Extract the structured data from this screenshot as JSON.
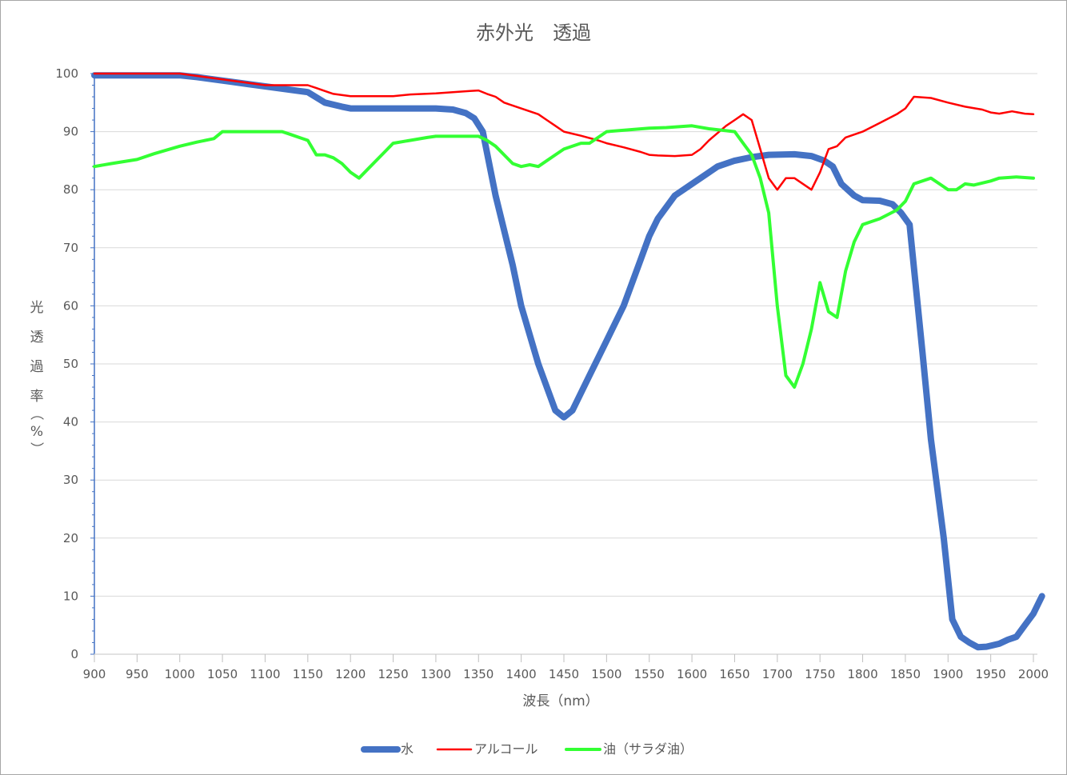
{
  "chart_data": {
    "type": "line",
    "title": "赤外光　透過",
    "xlabel": "波長（nm）",
    "ylabel": "光透過率（%）",
    "xlim": [
      900,
      2000
    ],
    "ylim": [
      0,
      100
    ],
    "xticks": [
      900,
      950,
      1000,
      1050,
      1100,
      1150,
      1200,
      1250,
      1300,
      1350,
      1400,
      1450,
      1500,
      1550,
      1600,
      1650,
      1700,
      1750,
      1800,
      1850,
      1900,
      1950,
      2000
    ],
    "yticks": [
      0,
      10,
      20,
      30,
      40,
      50,
      60,
      70,
      80,
      90,
      100
    ],
    "grid": "horizontal",
    "legend_position": "bottom",
    "series": [
      {
        "name": "水",
        "color": "#4472c4",
        "points": [
          [
            900,
            99.7
          ],
          [
            950,
            99.7
          ],
          [
            1000,
            99.7
          ],
          [
            1020,
            99.4
          ],
          [
            1040,
            99.0
          ],
          [
            1060,
            98.6
          ],
          [
            1080,
            98.2
          ],
          [
            1100,
            97.8
          ],
          [
            1120,
            97.4
          ],
          [
            1140,
            97.0
          ],
          [
            1150,
            96.8
          ],
          [
            1170,
            95.0
          ],
          [
            1190,
            94.3
          ],
          [
            1200,
            94.0
          ],
          [
            1250,
            94.0
          ],
          [
            1300,
            94.0
          ],
          [
            1320,
            93.8
          ],
          [
            1335,
            93.2
          ],
          [
            1345,
            92.3
          ],
          [
            1355,
            90.0
          ],
          [
            1370,
            79.0
          ],
          [
            1390,
            67.0
          ],
          [
            1400,
            60.0
          ],
          [
            1420,
            50.0
          ],
          [
            1440,
            42.0
          ],
          [
            1450,
            40.8
          ],
          [
            1460,
            42.0
          ],
          [
            1480,
            48.0
          ],
          [
            1500,
            54.0
          ],
          [
            1510,
            57.0
          ],
          [
            1520,
            60.0
          ],
          [
            1540,
            68.0
          ],
          [
            1550,
            72.0
          ],
          [
            1560,
            75.0
          ],
          [
            1580,
            79.0
          ],
          [
            1600,
            81.0
          ],
          [
            1610,
            82.0
          ],
          [
            1630,
            84.0
          ],
          [
            1650,
            85.0
          ],
          [
            1670,
            85.6
          ],
          [
            1690,
            86.0
          ],
          [
            1720,
            86.1
          ],
          [
            1740,
            85.8
          ],
          [
            1755,
            85.0
          ],
          [
            1765,
            84.0
          ],
          [
            1775,
            81.0
          ],
          [
            1790,
            79.0
          ],
          [
            1800,
            78.2
          ],
          [
            1820,
            78.1
          ],
          [
            1835,
            77.5
          ],
          [
            1845,
            76.0
          ],
          [
            1855,
            74.0
          ],
          [
            1870,
            52.0
          ],
          [
            1880,
            37.0
          ],
          [
            1895,
            20.0
          ],
          [
            1905,
            6.0
          ],
          [
            1915,
            3.0
          ],
          [
            1925,
            2.0
          ],
          [
            1935,
            1.2
          ],
          [
            1945,
            1.3
          ],
          [
            1960,
            1.8
          ],
          [
            1970,
            2.5
          ],
          [
            1980,
            3.0
          ],
          [
            1990,
            5.0
          ],
          [
            2000,
            7.0
          ],
          [
            2010,
            10.0
          ]
        ]
      },
      {
        "name": "アルコール",
        "color": "#ff0000",
        "points": [
          [
            900,
            100
          ],
          [
            950,
            100
          ],
          [
            1000,
            100
          ],
          [
            1050,
            99.0
          ],
          [
            1100,
            98.0
          ],
          [
            1150,
            98.0
          ],
          [
            1160,
            97.5
          ],
          [
            1170,
            97.0
          ],
          [
            1180,
            96.5
          ],
          [
            1200,
            96.1
          ],
          [
            1250,
            96.1
          ],
          [
            1270,
            96.4
          ],
          [
            1300,
            96.6
          ],
          [
            1320,
            96.8
          ],
          [
            1340,
            97.0
          ],
          [
            1350,
            97.1
          ],
          [
            1360,
            96.5
          ],
          [
            1370,
            96.0
          ],
          [
            1380,
            95.0
          ],
          [
            1400,
            94.0
          ],
          [
            1420,
            93.0
          ],
          [
            1430,
            92.0
          ],
          [
            1440,
            91.0
          ],
          [
            1450,
            90.0
          ],
          [
            1470,
            89.3
          ],
          [
            1490,
            88.5
          ],
          [
            1500,
            88.0
          ],
          [
            1520,
            87.3
          ],
          [
            1540,
            86.5
          ],
          [
            1550,
            86.0
          ],
          [
            1560,
            85.9
          ],
          [
            1580,
            85.8
          ],
          [
            1600,
            86.0
          ],
          [
            1610,
            87.0
          ],
          [
            1620,
            88.5
          ],
          [
            1640,
            91.0
          ],
          [
            1650,
            92.0
          ],
          [
            1660,
            93.0
          ],
          [
            1670,
            92.0
          ],
          [
            1680,
            87.0
          ],
          [
            1690,
            82.0
          ],
          [
            1700,
            80.0
          ],
          [
            1710,
            82.0
          ],
          [
            1720,
            82.0
          ],
          [
            1740,
            80.0
          ],
          [
            1750,
            83.0
          ],
          [
            1760,
            87.0
          ],
          [
            1770,
            87.5
          ],
          [
            1780,
            89.0
          ],
          [
            1800,
            90.0
          ],
          [
            1820,
            91.5
          ],
          [
            1840,
            93.0
          ],
          [
            1850,
            94.0
          ],
          [
            1860,
            96.0
          ],
          [
            1880,
            95.8
          ],
          [
            1900,
            95.0
          ],
          [
            1920,
            94.3
          ],
          [
            1940,
            93.8
          ],
          [
            1950,
            93.3
          ],
          [
            1960,
            93.1
          ],
          [
            1975,
            93.5
          ],
          [
            1990,
            93.1
          ],
          [
            2000,
            93.0
          ]
        ]
      },
      {
        "name": "油（サラダ油）",
        "color": "#33ff33",
        "points": [
          [
            900,
            84.0
          ],
          [
            920,
            84.5
          ],
          [
            950,
            85.2
          ],
          [
            970,
            86.2
          ],
          [
            1000,
            87.5
          ],
          [
            1020,
            88.2
          ],
          [
            1040,
            88.8
          ],
          [
            1050,
            90.0
          ],
          [
            1070,
            90.0
          ],
          [
            1100,
            90.0
          ],
          [
            1120,
            90.0
          ],
          [
            1130,
            89.5
          ],
          [
            1140,
            89.0
          ],
          [
            1150,
            88.5
          ],
          [
            1160,
            86.0
          ],
          [
            1170,
            86.0
          ],
          [
            1180,
            85.5
          ],
          [
            1190,
            84.5
          ],
          [
            1200,
            83.0
          ],
          [
            1210,
            82.0
          ],
          [
            1220,
            83.5
          ],
          [
            1240,
            86.5
          ],
          [
            1250,
            88.0
          ],
          [
            1270,
            88.5
          ],
          [
            1290,
            89.0
          ],
          [
            1300,
            89.2
          ],
          [
            1320,
            89.2
          ],
          [
            1350,
            89.2
          ],
          [
            1360,
            88.5
          ],
          [
            1370,
            87.5
          ],
          [
            1390,
            84.5
          ],
          [
            1400,
            84.0
          ],
          [
            1410,
            84.3
          ],
          [
            1420,
            84.0
          ],
          [
            1440,
            86.0
          ],
          [
            1450,
            87.0
          ],
          [
            1470,
            88.0
          ],
          [
            1480,
            88.0
          ],
          [
            1490,
            89.0
          ],
          [
            1500,
            90.0
          ],
          [
            1550,
            90.6
          ],
          [
            1570,
            90.7
          ],
          [
            1600,
            91.0
          ],
          [
            1620,
            90.5
          ],
          [
            1650,
            90.0
          ],
          [
            1660,
            88.0
          ],
          [
            1670,
            86.0
          ],
          [
            1680,
            82.0
          ],
          [
            1690,
            76.0
          ],
          [
            1700,
            60.0
          ],
          [
            1710,
            48.0
          ],
          [
            1720,
            46.0
          ],
          [
            1730,
            50.0
          ],
          [
            1740,
            56.0
          ],
          [
            1750,
            64.0
          ],
          [
            1760,
            59.0
          ],
          [
            1770,
            58.0
          ],
          [
            1780,
            66.0
          ],
          [
            1790,
            71.0
          ],
          [
            1800,
            74.0
          ],
          [
            1810,
            74.5
          ],
          [
            1820,
            75.0
          ],
          [
            1840,
            76.5
          ],
          [
            1850,
            78.0
          ],
          [
            1860,
            81.0
          ],
          [
            1880,
            82.0
          ],
          [
            1890,
            81.0
          ],
          [
            1900,
            80.0
          ],
          [
            1910,
            80.0
          ],
          [
            1920,
            81.0
          ],
          [
            1930,
            80.8
          ],
          [
            1950,
            81.5
          ],
          [
            1960,
            82.0
          ],
          [
            1980,
            82.2
          ],
          [
            2000,
            82.0
          ]
        ]
      }
    ]
  }
}
